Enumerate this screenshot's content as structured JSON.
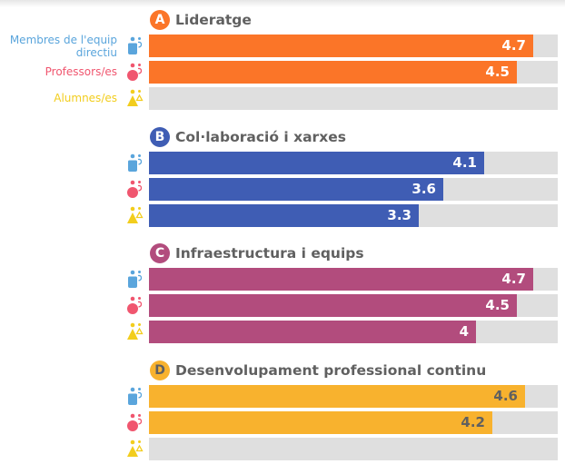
{
  "scale_max": 5,
  "groups": [
    {
      "name": "Membres de l'equip directiu",
      "label_line1": "Membres de l'equip",
      "label_line2": "directiu",
      "color": "#5aa5dc",
      "icon": "staff-icon"
    },
    {
      "name": "Professors/es",
      "label_line1": "Professors/es",
      "color": "#f0566f",
      "icon": "teacher-icon"
    },
    {
      "name": "Alumnes/es",
      "label_line1": "Alumnes/es",
      "color": "#f2cd1d",
      "icon": "student-icon"
    }
  ],
  "chart_data": {
    "type": "bar",
    "orientation": "horizontal",
    "xlim": [
      0,
      5
    ],
    "series_names": [
      "Membres de l'equip directiu",
      "Professors/es",
      "Alumnes/es"
    ],
    "sections": [
      {
        "letter": "A",
        "title": "Lideratge",
        "color": "#fb7528",
        "text_color": "#ffffff",
        "values": [
          4.7,
          4.5,
          null
        ],
        "labels": [
          "4.7",
          "4.5",
          ""
        ]
      },
      {
        "letter": "B",
        "title": "Col·laboració i xarxes",
        "color": "#3f5db4",
        "text_color": "#ffffff",
        "values": [
          4.1,
          3.6,
          3.3
        ],
        "labels": [
          "4.1",
          "3.6",
          "3.3"
        ]
      },
      {
        "letter": "C",
        "title": "Infraestructura i equips",
        "color": "#b24c7d",
        "text_color": "#ffffff",
        "values": [
          4.7,
          4.5,
          4
        ],
        "labels": [
          "4.7",
          "4.5",
          "4"
        ]
      },
      {
        "letter": "D",
        "title": "Desenvolupament professional continu",
        "color": "#f8b22e",
        "text_color": "#606060",
        "values": [
          4.6,
          4.2,
          null
        ],
        "labels": [
          "4.6",
          "4.2",
          ""
        ]
      }
    ]
  }
}
